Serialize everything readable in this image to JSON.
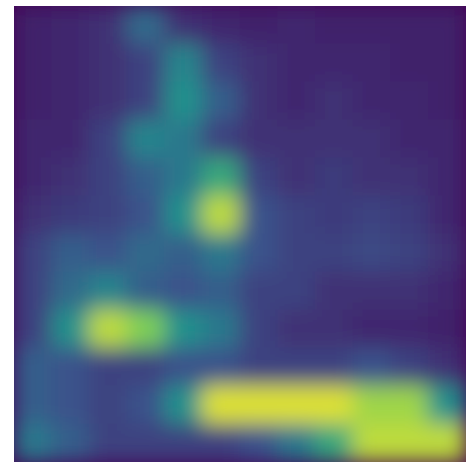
{
  "chart_data": {
    "type": "heatmap",
    "colormap": [
      "#440154",
      "#3b528b",
      "#21918c",
      "#5ec962",
      "#fde725"
    ],
    "vlim": [
      0,
      1
    ],
    "values": [
      [
        0.1,
        0.12,
        0.15,
        0.35,
        0.15,
        0.12,
        0.1,
        0.12,
        0.1,
        0.1,
        0.1,
        0.1
      ],
      [
        0.1,
        0.12,
        0.15,
        0.2,
        0.45,
        0.2,
        0.15,
        0.12,
        0.12,
        0.12,
        0.1,
        0.1
      ],
      [
        0.1,
        0.12,
        0.15,
        0.2,
        0.5,
        0.3,
        0.15,
        0.12,
        0.15,
        0.12,
        0.12,
        0.1
      ],
      [
        0.12,
        0.12,
        0.2,
        0.45,
        0.4,
        0.2,
        0.15,
        0.15,
        0.15,
        0.15,
        0.12,
        0.12
      ],
      [
        0.12,
        0.15,
        0.2,
        0.3,
        0.4,
        0.6,
        0.2,
        0.15,
        0.18,
        0.15,
        0.15,
        0.12
      ],
      [
        0.15,
        0.18,
        0.2,
        0.25,
        0.5,
        0.9,
        0.25,
        0.2,
        0.18,
        0.2,
        0.18,
        0.12
      ],
      [
        0.2,
        0.3,
        0.25,
        0.35,
        0.3,
        0.4,
        0.25,
        0.2,
        0.2,
        0.22,
        0.2,
        0.15
      ],
      [
        0.2,
        0.35,
        0.45,
        0.3,
        0.25,
        0.3,
        0.2,
        0.2,
        0.15,
        0.15,
        0.15,
        0.12
      ],
      [
        0.2,
        0.5,
        0.9,
        0.8,
        0.5,
        0.4,
        0.2,
        0.15,
        0.15,
        0.12,
        0.12,
        0.1
      ],
      [
        0.3,
        0.25,
        0.2,
        0.2,
        0.25,
        0.25,
        0.2,
        0.2,
        0.2,
        0.25,
        0.2,
        0.15
      ],
      [
        0.3,
        0.25,
        0.2,
        0.25,
        0.5,
        0.95,
        0.95,
        0.95,
        0.95,
        0.85,
        0.85,
        0.5
      ],
      [
        0.4,
        0.3,
        0.2,
        0.2,
        0.2,
        0.2,
        0.25,
        0.4,
        0.6,
        0.9,
        0.9,
        0.9
      ]
    ]
  }
}
